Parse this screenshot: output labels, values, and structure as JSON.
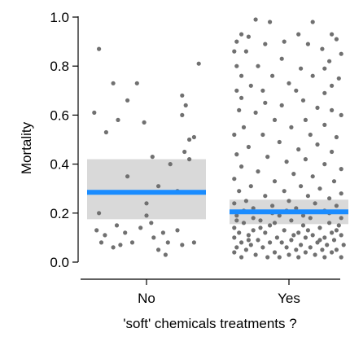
{
  "chart_data": {
    "type": "scatter",
    "title": "",
    "xlabel": "'soft' chemicals treatments ?",
    "ylabel": "Mortality",
    "categories": [
      "No",
      "Yes"
    ],
    "ylim": [
      0,
      1
    ],
    "yticks": [
      "0.0",
      "0.2",
      "0.4",
      "0.6",
      "0.8",
      "1.0"
    ],
    "grid": false,
    "colors": {
      "points": "#707070",
      "mean_line": "#1a8cff",
      "interval": "#d9d9d9"
    },
    "groups": [
      {
        "category": "No",
        "mean": 0.285,
        "interval": [
          0.175,
          0.42
        ],
        "points": [
          {
            "x": -0.44,
            "y": 0.61
          },
          {
            "x": -0.4,
            "y": 0.87
          },
          {
            "x": -0.34,
            "y": 0.53
          },
          {
            "x": -0.28,
            "y": 0.73
          },
          {
            "x": -0.24,
            "y": 0.58
          },
          {
            "x": -0.16,
            "y": 0.66
          },
          {
            "x": -0.08,
            "y": 0.73
          },
          {
            "x": -0.02,
            "y": 0.57
          },
          {
            "x": 0.3,
            "y": 0.68
          },
          {
            "x": 0.33,
            "y": 0.64
          },
          {
            "x": 0.3,
            "y": 0.6
          },
          {
            "x": 0.44,
            "y": 0.81
          },
          {
            "x": 0.4,
            "y": 0.51
          },
          {
            "x": 0.36,
            "y": 0.5
          },
          {
            "x": 0.32,
            "y": 0.45
          },
          {
            "x": 0.36,
            "y": 0.42
          },
          {
            "x": 0.2,
            "y": 0.4
          },
          {
            "x": 0.05,
            "y": 0.43
          },
          {
            "x": -0.16,
            "y": 0.35
          },
          {
            "x": 0.1,
            "y": 0.31
          },
          {
            "x": 0.26,
            "y": 0.29
          },
          {
            "x": 0.0,
            "y": 0.24
          },
          {
            "x": -0.4,
            "y": 0.2
          },
          {
            "x": 0.0,
            "y": 0.19
          },
          {
            "x": 0.04,
            "y": 0.16
          },
          {
            "x": -0.42,
            "y": 0.13
          },
          {
            "x": -0.35,
            "y": 0.11
          },
          {
            "x": -0.18,
            "y": 0.12
          },
          {
            "x": -0.25,
            "y": 0.15
          },
          {
            "x": -0.05,
            "y": 0.14
          },
          {
            "x": 0.14,
            "y": 0.12
          },
          {
            "x": 0.26,
            "y": 0.13
          },
          {
            "x": -0.38,
            "y": 0.08
          },
          {
            "x": -0.22,
            "y": 0.07
          },
          {
            "x": -0.12,
            "y": 0.08
          },
          {
            "x": 0.06,
            "y": 0.1
          },
          {
            "x": 0.18,
            "y": 0.08
          },
          {
            "x": 0.3,
            "y": 0.07
          },
          {
            "x": 0.4,
            "y": 0.08
          },
          {
            "x": -0.28,
            "y": 0.06
          },
          {
            "x": 0.1,
            "y": 0.05
          },
          {
            "x": 0.16,
            "y": 0.03
          }
        ]
      },
      {
        "category": "Yes",
        "mean": 0.205,
        "interval": [
          0.155,
          0.255
        ],
        "points": [
          {
            "x": -0.28,
            "y": 0.99
          },
          {
            "x": -0.16,
            "y": 0.98
          },
          {
            "x": 0.2,
            "y": 0.98
          },
          {
            "x": -0.4,
            "y": 0.93
          },
          {
            "x": -0.34,
            "y": 0.92
          },
          {
            "x": 0.08,
            "y": 0.93
          },
          {
            "x": 0.36,
            "y": 0.93
          },
          {
            "x": 0.4,
            "y": 0.91
          },
          {
            "x": -0.44,
            "y": 0.9
          },
          {
            "x": -0.2,
            "y": 0.89
          },
          {
            "x": -0.04,
            "y": 0.9
          },
          {
            "x": 0.16,
            "y": 0.89
          },
          {
            "x": -0.46,
            "y": 0.86
          },
          {
            "x": -0.36,
            "y": 0.86
          },
          {
            "x": 0.28,
            "y": 0.87
          },
          {
            "x": 0.44,
            "y": 0.85
          },
          {
            "x": -0.06,
            "y": 0.83
          },
          {
            "x": 0.34,
            "y": 0.82
          },
          {
            "x": -0.44,
            "y": 0.8
          },
          {
            "x": -0.26,
            "y": 0.8
          },
          {
            "x": 0.1,
            "y": 0.79
          },
          {
            "x": 0.3,
            "y": 0.79
          },
          {
            "x": -0.4,
            "y": 0.76
          },
          {
            "x": -0.14,
            "y": 0.76
          },
          {
            "x": 0.2,
            "y": 0.76
          },
          {
            "x": 0.42,
            "y": 0.75
          },
          {
            "x": 0.0,
            "y": 0.73
          },
          {
            "x": -0.32,
            "y": 0.72
          },
          {
            "x": 0.36,
            "y": 0.72
          },
          {
            "x": -0.44,
            "y": 0.7
          },
          {
            "x": 0.06,
            "y": 0.7
          },
          {
            "x": -0.22,
            "y": 0.7
          },
          {
            "x": 0.3,
            "y": 0.69
          },
          {
            "x": -0.4,
            "y": 0.67
          },
          {
            "x": -0.2,
            "y": 0.65
          },
          {
            "x": 0.12,
            "y": 0.66
          },
          {
            "x": -0.06,
            "y": 0.64
          },
          {
            "x": 0.24,
            "y": 0.63
          },
          {
            "x": -0.42,
            "y": 0.62
          },
          {
            "x": -0.28,
            "y": 0.61
          },
          {
            "x": 0.36,
            "y": 0.62
          },
          {
            "x": 0.44,
            "y": 0.6
          },
          {
            "x": -0.12,
            "y": 0.58
          },
          {
            "x": 0.14,
            "y": 0.58
          },
          {
            "x": -0.38,
            "y": 0.55
          },
          {
            "x": 0.02,
            "y": 0.55
          },
          {
            "x": 0.3,
            "y": 0.56
          },
          {
            "x": -0.46,
            "y": 0.52
          },
          {
            "x": -0.22,
            "y": 0.52
          },
          {
            "x": 0.18,
            "y": 0.52
          },
          {
            "x": 0.4,
            "y": 0.51
          },
          {
            "x": -0.08,
            "y": 0.49
          },
          {
            "x": 0.24,
            "y": 0.48
          },
          {
            "x": -0.34,
            "y": 0.47
          },
          {
            "x": 0.08,
            "y": 0.46
          },
          {
            "x": -0.44,
            "y": 0.44
          },
          {
            "x": 0.36,
            "y": 0.45
          },
          {
            "x": -0.18,
            "y": 0.43
          },
          {
            "x": 0.14,
            "y": 0.42
          },
          {
            "x": -0.02,
            "y": 0.41
          },
          {
            "x": -0.4,
            "y": 0.39
          },
          {
            "x": 0.3,
            "y": 0.4
          },
          {
            "x": 0.44,
            "y": 0.38
          },
          {
            "x": -0.26,
            "y": 0.37
          },
          {
            "x": 0.04,
            "y": 0.36
          },
          {
            "x": 0.2,
            "y": 0.35
          },
          {
            "x": -0.46,
            "y": 0.34
          },
          {
            "x": -0.12,
            "y": 0.33
          },
          {
            "x": 0.38,
            "y": 0.33
          },
          {
            "x": -0.32,
            "y": 0.31
          },
          {
            "x": 0.1,
            "y": 0.31
          },
          {
            "x": 0.26,
            "y": 0.3
          },
          {
            "x": -0.42,
            "y": 0.29
          },
          {
            "x": -0.04,
            "y": 0.29
          },
          {
            "x": 0.44,
            "y": 0.28
          },
          {
            "x": -0.2,
            "y": 0.27
          },
          {
            "x": 0.16,
            "y": 0.27
          },
          {
            "x": 0.34,
            "y": 0.26
          },
          {
            "x": -0.36,
            "y": 0.25
          },
          {
            "x": 0.0,
            "y": 0.25
          },
          {
            "x": -0.46,
            "y": 0.24
          },
          {
            "x": 0.22,
            "y": 0.24
          },
          {
            "x": 0.4,
            "y": 0.23
          },
          {
            "x": -0.14,
            "y": 0.23
          },
          {
            "x": -0.3,
            "y": 0.22
          },
          {
            "x": 0.06,
            "y": 0.22
          },
          {
            "x": 0.3,
            "y": 0.21
          },
          {
            "x": -0.44,
            "y": 0.19
          },
          {
            "x": -0.08,
            "y": 0.19
          },
          {
            "x": 0.18,
            "y": 0.18
          },
          {
            "x": 0.44,
            "y": 0.18
          },
          {
            "x": -0.24,
            "y": 0.17
          },
          {
            "x": 0.02,
            "y": 0.17
          },
          {
            "x": -0.38,
            "y": 0.16
          },
          {
            "x": 0.34,
            "y": 0.16
          },
          {
            "x": -0.16,
            "y": 0.15
          },
          {
            "x": 0.12,
            "y": 0.15
          },
          {
            "x": -0.46,
            "y": 0.14
          },
          {
            "x": 0.26,
            "y": 0.14
          },
          {
            "x": -0.3,
            "y": 0.13
          },
          {
            "x": -0.04,
            "y": 0.13
          },
          {
            "x": 0.4,
            "y": 0.13
          },
          {
            "x": -0.42,
            "y": 0.12
          },
          {
            "x": -0.2,
            "y": 0.12
          },
          {
            "x": 0.08,
            "y": 0.12
          },
          {
            "x": 0.2,
            "y": 0.11
          },
          {
            "x": 0.44,
            "y": 0.11
          },
          {
            "x": -0.34,
            "y": 0.11
          },
          {
            "x": -0.1,
            "y": 0.1
          },
          {
            "x": 0.3,
            "y": 0.1
          },
          {
            "x": -0.46,
            "y": 0.1
          },
          {
            "x": 0.14,
            "y": 0.1
          },
          {
            "x": -0.26,
            "y": 0.09
          },
          {
            "x": 0.02,
            "y": 0.09
          },
          {
            "x": 0.38,
            "y": 0.09
          },
          {
            "x": -0.4,
            "y": 0.08
          },
          {
            "x": -0.16,
            "y": 0.08
          },
          {
            "x": 0.24,
            "y": 0.08
          },
          {
            "x": -0.06,
            "y": 0.08
          },
          {
            "x": 0.46,
            "y": 0.07
          },
          {
            "x": -0.32,
            "y": 0.07
          },
          {
            "x": 0.1,
            "y": 0.07
          },
          {
            "x": 0.32,
            "y": 0.07
          },
          {
            "x": -0.44,
            "y": 0.06
          },
          {
            "x": -0.22,
            "y": 0.06
          },
          {
            "x": 0.18,
            "y": 0.06
          },
          {
            "x": -0.02,
            "y": 0.06
          },
          {
            "x": 0.4,
            "y": 0.05
          },
          {
            "x": -0.36,
            "y": 0.05
          },
          {
            "x": 0.06,
            "y": 0.05
          },
          {
            "x": 0.28,
            "y": 0.05
          },
          {
            "x": -0.12,
            "y": 0.04
          },
          {
            "x": -0.46,
            "y": 0.04
          },
          {
            "x": 0.14,
            "y": 0.04
          },
          {
            "x": 0.36,
            "y": 0.04
          },
          {
            "x": -0.28,
            "y": 0.03
          },
          {
            "x": 0.0,
            "y": 0.03
          },
          {
            "x": 0.22,
            "y": 0.03
          },
          {
            "x": -0.4,
            "y": 0.02
          },
          {
            "x": -0.18,
            "y": 0.02
          },
          {
            "x": 0.44,
            "y": 0.02
          },
          {
            "x": 0.08,
            "y": 0.02
          },
          {
            "x": -0.08,
            "y": 0.02
          },
          {
            "x": 0.3,
            "y": 0.02
          },
          {
            "x": -0.34,
            "y": 0.09
          },
          {
            "x": 0.16,
            "y": 0.13
          },
          {
            "x": -0.24,
            "y": 0.14
          },
          {
            "x": 0.36,
            "y": 0.12
          },
          {
            "x": -0.12,
            "y": 0.16
          },
          {
            "x": 0.04,
            "y": 0.11
          },
          {
            "x": 0.26,
            "y": 0.09
          },
          {
            "x": -0.44,
            "y": 0.17
          },
          {
            "x": 0.42,
            "y": 0.15
          },
          {
            "x": -0.3,
            "y": 0.18
          },
          {
            "x": 0.12,
            "y": 0.19
          },
          {
            "x": -0.02,
            "y": 0.21
          },
          {
            "x": 0.34,
            "y": 0.2
          },
          {
            "x": -0.38,
            "y": 0.21
          },
          {
            "x": -0.14,
            "y": 0.2
          }
        ]
      }
    ]
  }
}
